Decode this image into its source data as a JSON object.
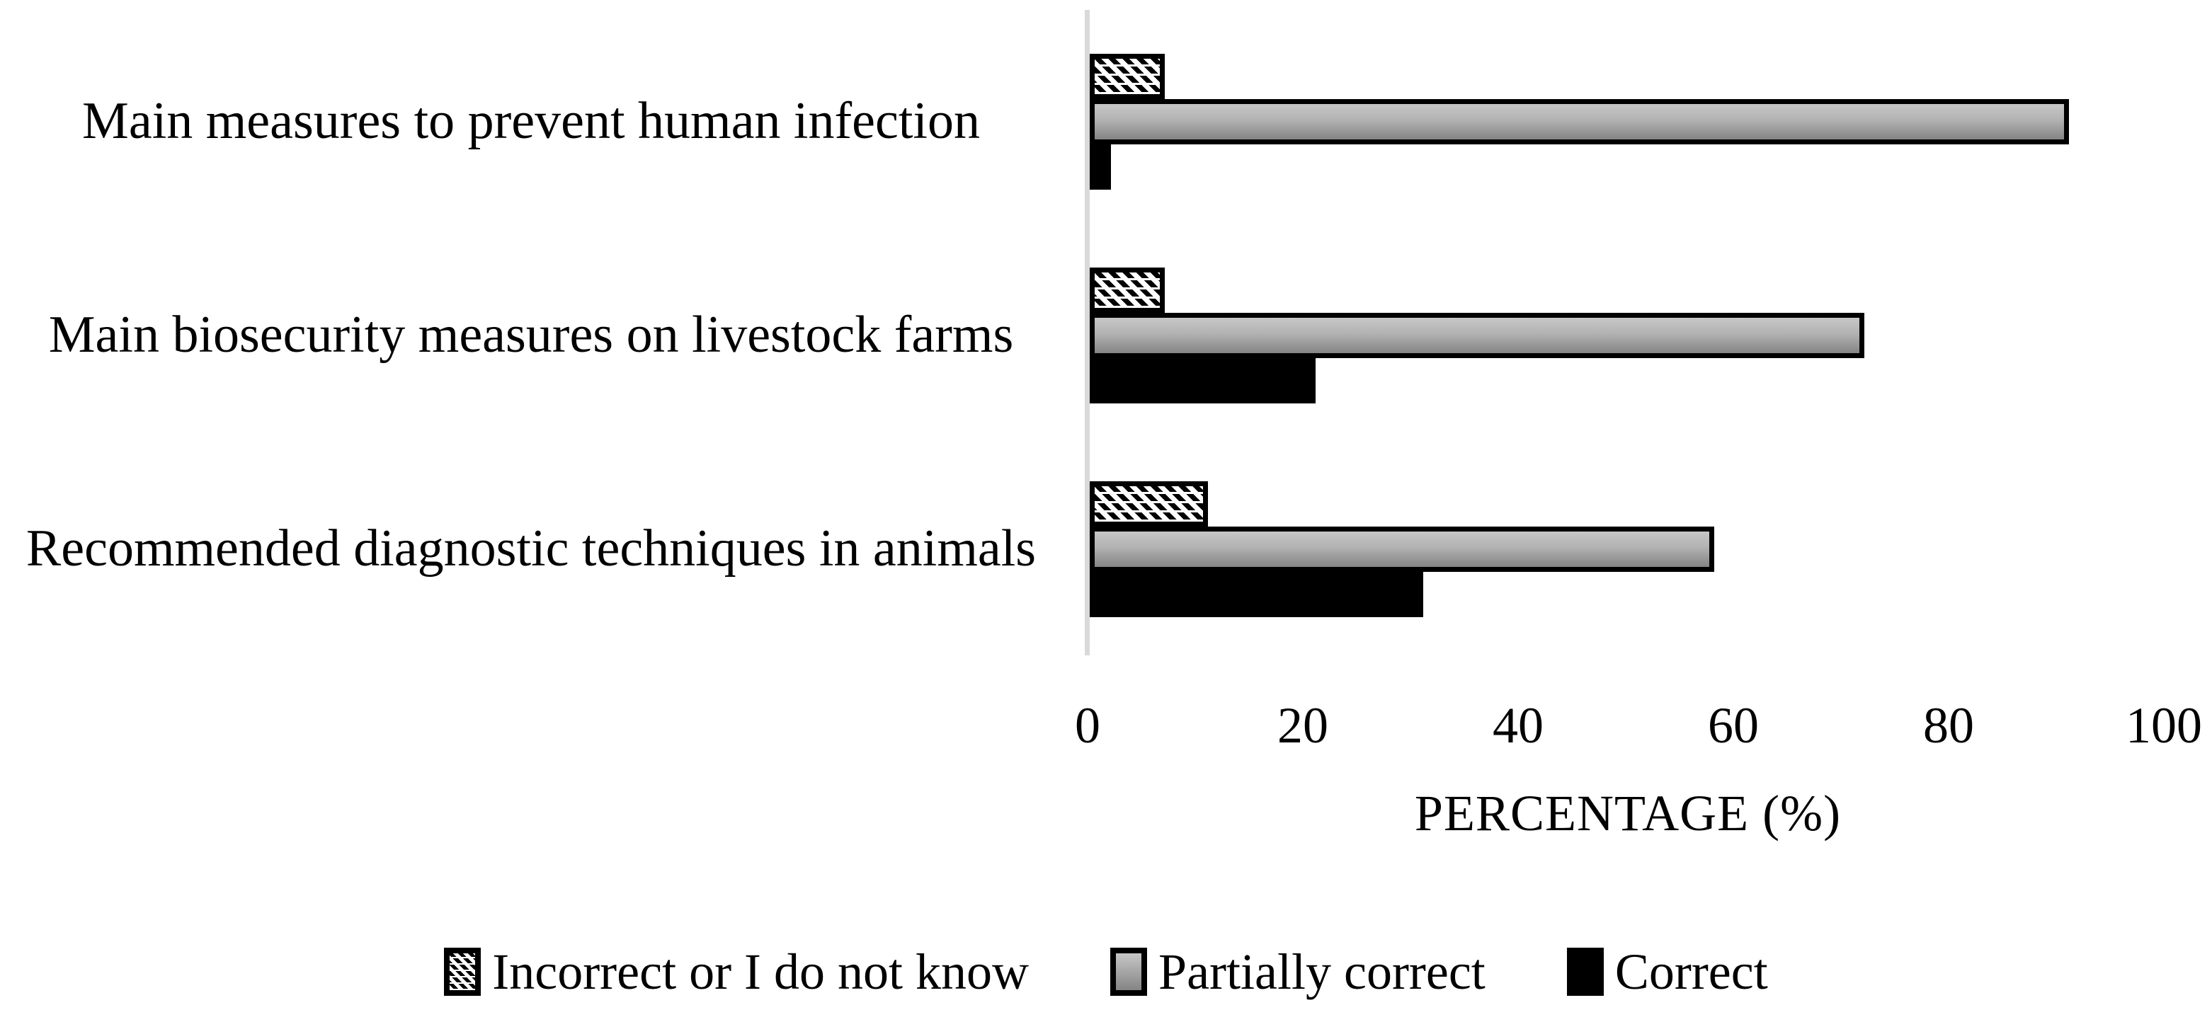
{
  "chart_data": {
    "type": "bar",
    "orientation": "horizontal",
    "title": "",
    "categories": [
      "Main measures to prevent human infection",
      "Main biosecurity measures on livestock farms",
      "Recommended diagnostic techniques in animals"
    ],
    "series": [
      {
        "name": "Incorrect or I do not know",
        "style": "hatched",
        "values": [
          7,
          7,
          11
        ]
      },
      {
        "name": "Partially correct",
        "style": "gray",
        "values": [
          91,
          72,
          58
        ]
      },
      {
        "name": "Correct",
        "style": "black",
        "values": [
          2,
          21,
          31
        ]
      }
    ],
    "xlabel": "PERCENTAGE (%)",
    "x_ticks": [
      0,
      20,
      40,
      60,
      80,
      100
    ],
    "xlim": [
      0,
      100
    ],
    "grid": false,
    "legend_position": "bottom",
    "colors": {
      "correct": "#000000",
      "partially_correct_top": "#c7c7c7",
      "partially_correct_bottom": "#848484",
      "hatch_line": "#000000",
      "axis_line": "#d9d9d9",
      "background": "#ffffff"
    }
  }
}
